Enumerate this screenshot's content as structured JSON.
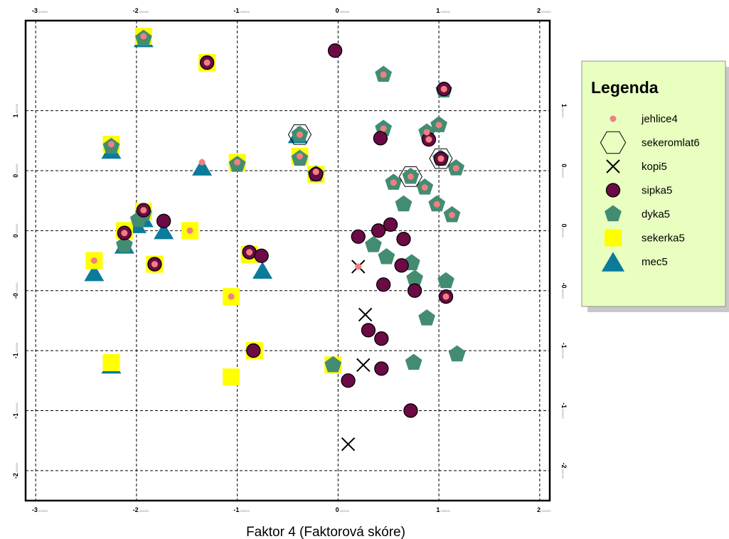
{
  "chart_data": {
    "type": "scatter",
    "xlabel": "Faktor 4 (Faktorová skóre)",
    "ylabel": "",
    "xlim": [
      -3.1,
      2.1
    ],
    "ylim": [
      -2.25,
      1.75
    ],
    "grid": true,
    "x_ticks": [
      {
        "value": -3,
        "main": "-3",
        "sub": ".000000"
      },
      {
        "value": -2,
        "main": "-2",
        "sub": ".000000"
      },
      {
        "value": -1,
        "main": "-1",
        "sub": ".000000"
      },
      {
        "value": 0,
        "main": "0",
        "sub": ".000000"
      },
      {
        "value": 1,
        "main": "1",
        "sub": ".000000"
      },
      {
        "value": 2,
        "main": "2",
        "sub": ".000000"
      }
    ],
    "y_ticks": [
      {
        "value": 1,
        "main": "1",
        "sub": ".000000"
      },
      {
        "value": 0.5,
        "main": "0",
        "sub": ".500000"
      },
      {
        "value": 0,
        "main": "0",
        "sub": ".000000"
      },
      {
        "value": -0.5,
        "main": "-0",
        "sub": ".500000"
      },
      {
        "value": -1,
        "main": "-1",
        "sub": ".000000"
      },
      {
        "value": -1.5,
        "main": "-1",
        "sub": ".500000"
      },
      {
        "value": -2,
        "main": "-2",
        "sub": ".000000"
      }
    ],
    "legend": {
      "title": "Legenda",
      "placement": "right",
      "entries": [
        {
          "label": "jehlice4",
          "symbol": "dot"
        },
        {
          "label": "sekeromlat6",
          "symbol": "hexagon"
        },
        {
          "label": "kopi5",
          "symbol": "cross"
        },
        {
          "label": "sipka5",
          "symbol": "circle"
        },
        {
          "label": "dyka5",
          "symbol": "pentagon"
        },
        {
          "label": "sekerka5",
          "symbol": "square"
        },
        {
          "label": "mec5",
          "symbol": "triangle"
        }
      ]
    },
    "series": [
      {
        "name": "mec5",
        "symbol": "triangle",
        "color": "#0b7b9a",
        "points": [
          {
            "x": -1.93,
            "y": 1.6
          },
          {
            "x": -2.25,
            "y": 0.67
          },
          {
            "x": -1.35,
            "y": 0.53
          },
          {
            "x": -0.4,
            "y": 0.8
          },
          {
            "x": -1.93,
            "y": 0.1
          },
          {
            "x": -2.0,
            "y": 0.05
          },
          {
            "x": -1.73,
            "y": 0.0
          },
          {
            "x": -2.12,
            "y": -0.12
          },
          {
            "x": -2.42,
            "y": -0.35
          },
          {
            "x": -0.75,
            "y": -0.33
          },
          {
            "x": -2.25,
            "y": -1.12
          }
        ]
      },
      {
        "name": "sekerka5",
        "symbol": "square",
        "color": "#ffff00",
        "points": [
          {
            "x": -1.93,
            "y": 1.62
          },
          {
            "x": -1.3,
            "y": 1.4
          },
          {
            "x": -2.25,
            "y": 0.72
          },
          {
            "x": -1.0,
            "y": 0.57
          },
          {
            "x": -0.38,
            "y": 0.62
          },
          {
            "x": -0.22,
            "y": 0.47
          },
          {
            "x": -1.47,
            "y": 0.0
          },
          {
            "x": -1.93,
            "y": 0.16
          },
          {
            "x": -2.12,
            "y": 0.0
          },
          {
            "x": -2.42,
            "y": -0.25
          },
          {
            "x": -1.82,
            "y": -0.28
          },
          {
            "x": -0.88,
            "y": -0.2
          },
          {
            "x": -1.06,
            "y": -0.55
          },
          {
            "x": -0.83,
            "y": -1.0
          },
          {
            "x": -2.25,
            "y": -1.1
          },
          {
            "x": -0.05,
            "y": -1.12
          },
          {
            "x": -1.06,
            "y": -1.22
          }
        ]
      },
      {
        "name": "dyka5",
        "symbol": "pentagon",
        "color": "#438c72",
        "points": [
          {
            "x": -1.93,
            "y": 1.6
          },
          {
            "x": -2.25,
            "y": 0.7
          },
          {
            "x": -1.0,
            "y": 0.55
          },
          {
            "x": -0.38,
            "y": 0.8
          },
          {
            "x": -0.38,
            "y": 0.6
          },
          {
            "x": -0.22,
            "y": 0.47
          },
          {
            "x": -1.93,
            "y": 0.14
          },
          {
            "x": -1.98,
            "y": 0.09
          },
          {
            "x": -2.12,
            "y": -0.12
          },
          {
            "x": 0.45,
            "y": 1.3
          },
          {
            "x": 1.05,
            "y": 1.17
          },
          {
            "x": 0.45,
            "y": 0.85
          },
          {
            "x": 0.88,
            "y": 0.82
          },
          {
            "x": 1.0,
            "y": 0.88
          },
          {
            "x": 1.02,
            "y": 0.6
          },
          {
            "x": 1.17,
            "y": 0.52
          },
          {
            "x": 0.72,
            "y": 0.45
          },
          {
            "x": 0.55,
            "y": 0.4
          },
          {
            "x": 0.86,
            "y": 0.36
          },
          {
            "x": 0.65,
            "y": 0.22
          },
          {
            "x": 0.98,
            "y": 0.22
          },
          {
            "x": 1.13,
            "y": 0.13
          },
          {
            "x": 0.35,
            "y": -0.12
          },
          {
            "x": 0.48,
            "y": -0.22
          },
          {
            "x": 0.73,
            "y": -0.27
          },
          {
            "x": 0.76,
            "y": -0.4
          },
          {
            "x": 1.07,
            "y": -0.42
          },
          {
            "x": 0.88,
            "y": -0.73
          },
          {
            "x": 1.18,
            "y": -1.03
          },
          {
            "x": -0.05,
            "y": -1.12
          },
          {
            "x": 0.75,
            "y": -1.1
          }
        ]
      },
      {
        "name": "sipka5",
        "symbol": "circle",
        "color": "#6b0a45",
        "points": [
          {
            "x": -1.3,
            "y": 1.4
          },
          {
            "x": -0.03,
            "y": 1.5
          },
          {
            "x": 1.05,
            "y": 1.18
          },
          {
            "x": -0.22,
            "y": 0.47
          },
          {
            "x": 0.42,
            "y": 0.77
          },
          {
            "x": 0.9,
            "y": 0.76
          },
          {
            "x": 1.02,
            "y": 0.6
          },
          {
            "x": -1.93,
            "y": 0.17
          },
          {
            "x": -1.73,
            "y": 0.08
          },
          {
            "x": -2.12,
            "y": -0.02
          },
          {
            "x": 0.52,
            "y": 0.05
          },
          {
            "x": 0.4,
            "y": 0.0
          },
          {
            "x": 0.2,
            "y": -0.05
          },
          {
            "x": 0.65,
            "y": -0.07
          },
          {
            "x": -0.88,
            "y": -0.18
          },
          {
            "x": -0.76,
            "y": -0.21
          },
          {
            "x": -1.82,
            "y": -0.28
          },
          {
            "x": 0.63,
            "y": -0.29
          },
          {
            "x": 0.45,
            "y": -0.45
          },
          {
            "x": 0.76,
            "y": -0.5
          },
          {
            "x": 1.07,
            "y": -0.55
          },
          {
            "x": 0.3,
            "y": -0.83
          },
          {
            "x": 0.43,
            "y": -0.9
          },
          {
            "x": -0.84,
            "y": -1.0
          },
          {
            "x": 0.43,
            "y": -1.15
          },
          {
            "x": 0.1,
            "y": -1.25
          },
          {
            "x": 0.72,
            "y": -1.5
          }
        ]
      },
      {
        "name": "kopi5",
        "symbol": "cross",
        "color": "#000000",
        "points": [
          {
            "x": 0.2,
            "y": -0.3
          },
          {
            "x": 0.27,
            "y": -0.7
          },
          {
            "x": 0.25,
            "y": -1.12
          },
          {
            "x": 0.1,
            "y": -1.78
          }
        ]
      },
      {
        "name": "sekeromlat6",
        "symbol": "hexagon",
        "color": "#000000",
        "points": [
          {
            "x": -0.38,
            "y": 0.8
          },
          {
            "x": 0.72,
            "y": 0.45
          },
          {
            "x": 1.02,
            "y": 0.6
          }
        ]
      },
      {
        "name": "jehlice4",
        "symbol": "dot",
        "color": "#f08080",
        "points": [
          {
            "x": -1.93,
            "y": 1.62
          },
          {
            "x": -1.3,
            "y": 1.4
          },
          {
            "x": 1.05,
            "y": 1.18
          },
          {
            "x": -2.25,
            "y": 0.72
          },
          {
            "x": -0.38,
            "y": 0.8
          },
          {
            "x": -0.38,
            "y": 0.62
          },
          {
            "x": -1.35,
            "y": 0.57
          },
          {
            "x": -1.0,
            "y": 0.57
          },
          {
            "x": -0.22,
            "y": 0.49
          },
          {
            "x": 0.45,
            "y": 1.3
          },
          {
            "x": 0.45,
            "y": 0.85
          },
          {
            "x": 0.88,
            "y": 0.82
          },
          {
            "x": 1.0,
            "y": 0.88
          },
          {
            "x": 0.9,
            "y": 0.76
          },
          {
            "x": 1.02,
            "y": 0.6
          },
          {
            "x": 1.17,
            "y": 0.52
          },
          {
            "x": 0.72,
            "y": 0.45
          },
          {
            "x": 0.55,
            "y": 0.4
          },
          {
            "x": 0.86,
            "y": 0.36
          },
          {
            "x": 0.98,
            "y": 0.22
          },
          {
            "x": 1.13,
            "y": 0.13
          },
          {
            "x": -1.93,
            "y": 0.17
          },
          {
            "x": -1.47,
            "y": 0.0
          },
          {
            "x": -2.12,
            "y": -0.02
          },
          {
            "x": -2.42,
            "y": -0.25
          },
          {
            "x": -0.88,
            "y": -0.18
          },
          {
            "x": -1.82,
            "y": -0.28
          },
          {
            "x": -1.06,
            "y": -0.55
          },
          {
            "x": 0.2,
            "y": -0.3
          },
          {
            "x": 1.07,
            "y": -0.55
          }
        ]
      }
    ]
  }
}
